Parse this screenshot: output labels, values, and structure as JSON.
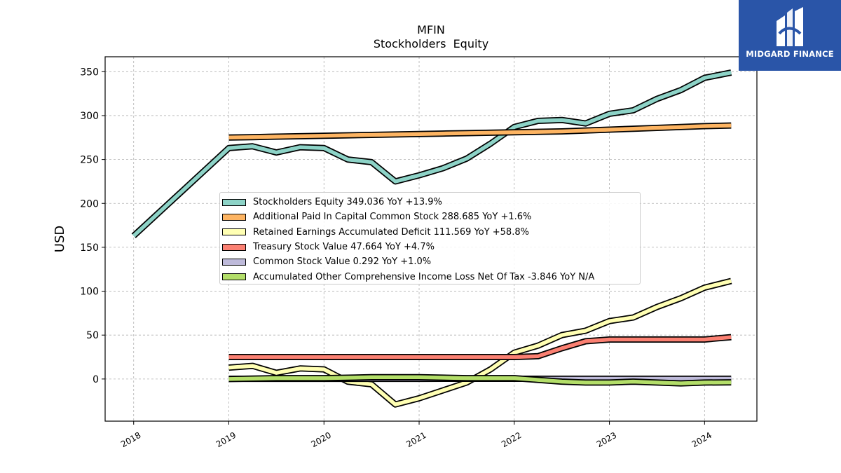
{
  "logo": {
    "text": "MIDGARD FINANCE",
    "icon": "m-monogram-icon",
    "background": "#2a55a8"
  },
  "chart_data": {
    "type": "line",
    "title": "MFIN",
    "subtitle": "Stockholders  Equity",
    "ylabel": "USD",
    "xlabel": "",
    "xlim": [
      2017.7,
      2024.55
    ],
    "ylim": [
      -48,
      367
    ],
    "yticks": [
      0,
      50,
      100,
      150,
      200,
      250,
      300,
      350
    ],
    "xticks": [
      "2018",
      "2019",
      "2020",
      "2021",
      "2022",
      "2023",
      "2024"
    ],
    "grid": true,
    "legend_placement": "center",
    "series": [
      {
        "name": "Stockholders Equity",
        "legend": "Stockholders Equity  349.036 YoY +13.9%",
        "color": "#8dd3c7",
        "x": [
          2018.0,
          2019.0,
          2019.25,
          2019.5,
          2019.75,
          2020.0,
          2020.25,
          2020.5,
          2020.75,
          2021.0,
          2021.25,
          2021.5,
          2021.75,
          2022.0,
          2022.25,
          2022.5,
          2022.75,
          2023.0,
          2023.25,
          2023.5,
          2023.75,
          2024.0,
          2024.28
        ],
        "y": [
          163,
          263,
          265,
          258,
          264,
          263,
          250,
          247,
          225,
          232,
          240,
          251,
          268,
          287,
          294,
          295,
          291,
          302,
          306,
          319,
          329,
          343,
          349
        ]
      },
      {
        "name": "Additional Paid In Capital Common Stock",
        "legend": "Additional Paid In Capital Common Stock  288.685 YoY +1.6%",
        "color": "#fdb462",
        "x": [
          2019.0,
          2019.25,
          2019.5,
          2019.75,
          2020.0,
          2020.25,
          2020.5,
          2020.75,
          2021.0,
          2021.25,
          2021.5,
          2021.75,
          2022.0,
          2022.25,
          2022.5,
          2022.75,
          2023.0,
          2023.25,
          2023.5,
          2023.75,
          2024.0,
          2024.28
        ],
        "y": [
          275,
          275.5,
          276,
          276.5,
          277,
          277.5,
          278,
          278.5,
          279,
          279.5,
          280,
          280.5,
          281,
          281.5,
          282,
          283,
          284,
          285,
          286,
          287,
          288,
          288.7
        ]
      },
      {
        "name": "Retained Earnings Accumulated Deficit",
        "legend": "Retained Earnings Accumulated Deficit  111.569 YoY +58.8%",
        "color": "#ffffb3",
        "x": [
          2019.0,
          2019.25,
          2019.5,
          2019.75,
          2020.0,
          2020.25,
          2020.5,
          2020.75,
          2021.0,
          2021.25,
          2021.5,
          2021.75,
          2022.0,
          2022.25,
          2022.5,
          2022.75,
          2023.0,
          2023.25,
          2023.5,
          2023.75,
          2024.0,
          2024.28
        ],
        "y": [
          13,
          15,
          7,
          12,
          11,
          -3,
          -6,
          -29,
          -22,
          -13,
          -4,
          11,
          30,
          38,
          50,
          55,
          66,
          70,
          82,
          92,
          104,
          111.6
        ]
      },
      {
        "name": "Treasury Stock Value",
        "legend": "Treasury Stock Value  47.664 YoY +4.7%",
        "color": "#fb8072",
        "x": [
          2019.0,
          2019.25,
          2019.5,
          2019.75,
          2020.0,
          2020.25,
          2020.5,
          2020.75,
          2021.0,
          2021.25,
          2021.5,
          2021.75,
          2022.0,
          2022.25,
          2022.5,
          2022.75,
          2023.0,
          2023.25,
          2023.5,
          2023.75,
          2024.0,
          2024.28
        ],
        "y": [
          25,
          25,
          25,
          25,
          25,
          25,
          25,
          25,
          25,
          25,
          25,
          25,
          25,
          26,
          35,
          43,
          45,
          45,
          45,
          45,
          45,
          47.7
        ]
      },
      {
        "name": "Common Stock Value",
        "legend": "Common Stock Value  0.292 YoY +1.0%",
        "color": "#bebada",
        "x": [
          2019.0,
          2019.5,
          2020.0,
          2020.5,
          2021.0,
          2021.5,
          2022.0,
          2022.5,
          2023.0,
          2023.5,
          2024.0,
          2024.28
        ],
        "y": [
          0.2,
          0.2,
          0.22,
          0.23,
          0.24,
          0.25,
          0.26,
          0.27,
          0.28,
          0.28,
          0.29,
          0.292
        ]
      },
      {
        "name": "Accumulated Other Comprehensive Income Loss Net Of Tax",
        "legend": "Accumulated Other Comprehensive Income Loss Net Of Tax  -3.846 YoY N/A",
        "color": "#b3de69",
        "x": [
          2019.0,
          2019.5,
          2020.0,
          2020.5,
          2021.0,
          2021.5,
          2022.0,
          2022.25,
          2022.5,
          2022.75,
          2023.0,
          2023.25,
          2023.5,
          2023.75,
          2024.0,
          2024.28
        ],
        "y": [
          0,
          1,
          1,
          2,
          2,
          1,
          1,
          -1,
          -3,
          -4,
          -4,
          -3,
          -4,
          -5,
          -4,
          -3.8
        ]
      }
    ]
  }
}
